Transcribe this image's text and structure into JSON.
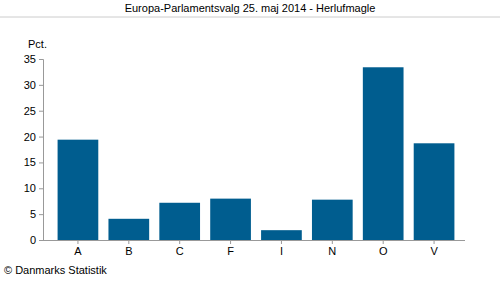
{
  "chart_data": {
    "type": "bar",
    "title": "Europa-Parlamentsvalg 25. maj 2014 - Herlufmagle",
    "y_label": "Pct.",
    "annotations": [
      "© Danmarks Statistik"
    ],
    "categories": [
      "A",
      "B",
      "C",
      "F",
      "I",
      "N",
      "O",
      "V"
    ],
    "values": [
      19.4,
      4.1,
      7.2,
      8.0,
      1.9,
      7.8,
      33.4,
      18.7
    ],
    "color": "#005d8f",
    "ylim": [
      0,
      35
    ],
    "yticks": [
      0,
      5,
      10,
      15,
      20,
      25,
      30,
      35
    ],
    "grid": false
  }
}
